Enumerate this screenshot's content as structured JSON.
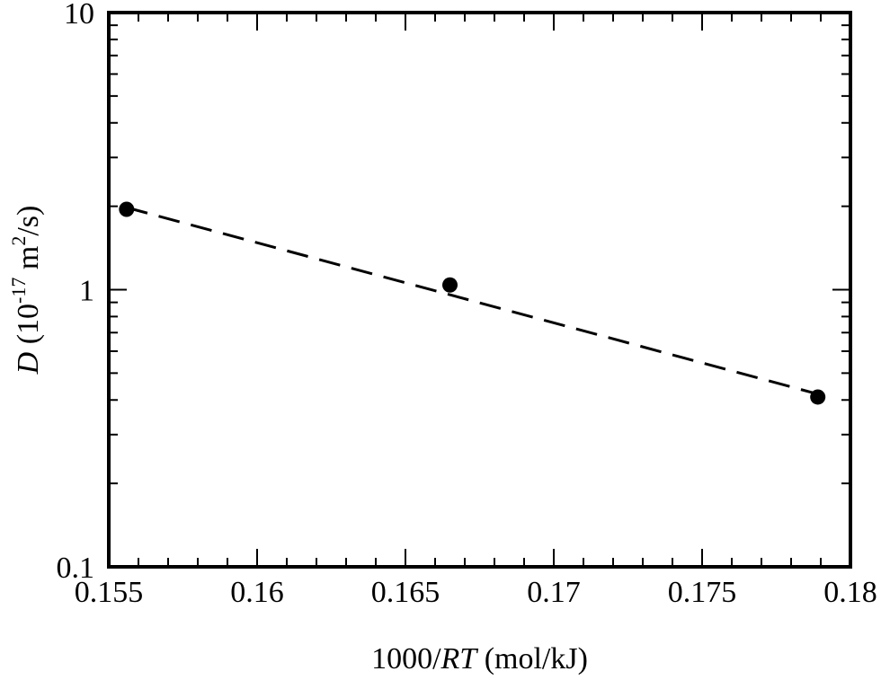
{
  "chart_data": {
    "type": "scatter",
    "title": "",
    "xlabel": {
      "prefix": "1000/",
      "italic": "RT",
      "suffix": " (mol/kJ)"
    },
    "ylabel": {
      "italic": "D",
      "open": " (10",
      "exp": "-17",
      "mid": " m",
      "exp2": "2",
      "close": "/s)"
    },
    "xlim": [
      0.155,
      0.18
    ],
    "ylim": [
      0.1,
      10
    ],
    "yscale": "log",
    "grid": false,
    "x_ticks": [
      {
        "value": 0.155,
        "label": "0.155"
      },
      {
        "value": 0.16,
        "label": "0.16"
      },
      {
        "value": 0.165,
        "label": "0.165"
      },
      {
        "value": 0.17,
        "label": "0.17"
      },
      {
        "value": 0.175,
        "label": "0.175"
      },
      {
        "value": 0.18,
        "label": "0.18"
      }
    ],
    "x_minor_step": 0.001,
    "y_ticks": [
      {
        "value": 0.1,
        "label": "0.1"
      },
      {
        "value": 1,
        "label": "1"
      },
      {
        "value": 10,
        "label": "10"
      }
    ],
    "series": [
      {
        "style": "markers",
        "color": "#000000",
        "points": [
          {
            "x": 0.1556,
            "y": 1.95
          },
          {
            "x": 0.1665,
            "y": 1.04
          },
          {
            "x": 0.1789,
            "y": 0.41
          }
        ]
      },
      {
        "style": "dashed-line",
        "color": "#000000",
        "points": [
          {
            "x": 0.1556,
            "y": 1.98
          },
          {
            "x": 0.1789,
            "y": 0.42
          }
        ]
      }
    ]
  }
}
